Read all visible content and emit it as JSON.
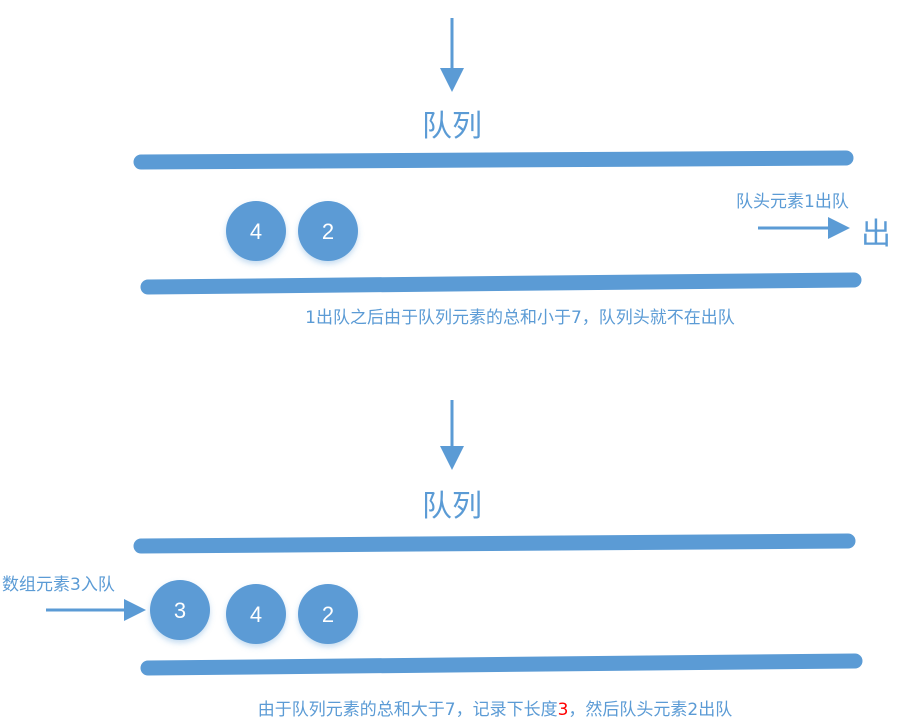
{
  "colors": {
    "primary": "#5b9bd5",
    "highlight": "#ff0000",
    "circle_text": "#ffffff"
  },
  "stage1": {
    "title": "队列",
    "elements": [
      "4",
      "2"
    ],
    "dequeue_label": "队头元素1出队",
    "exit_label": "出",
    "caption": "1出队之后由于队列元素的总和小于7，队列头就不在出队"
  },
  "stage2": {
    "title": "队列",
    "elements": [
      "3",
      "4",
      "2"
    ],
    "enqueue_label": "数组元素3入队",
    "caption_before": "由于队列元素的总和大于7，记录下长度",
    "caption_highlight": "3",
    "caption_after": "，然后队头元素2出队"
  }
}
